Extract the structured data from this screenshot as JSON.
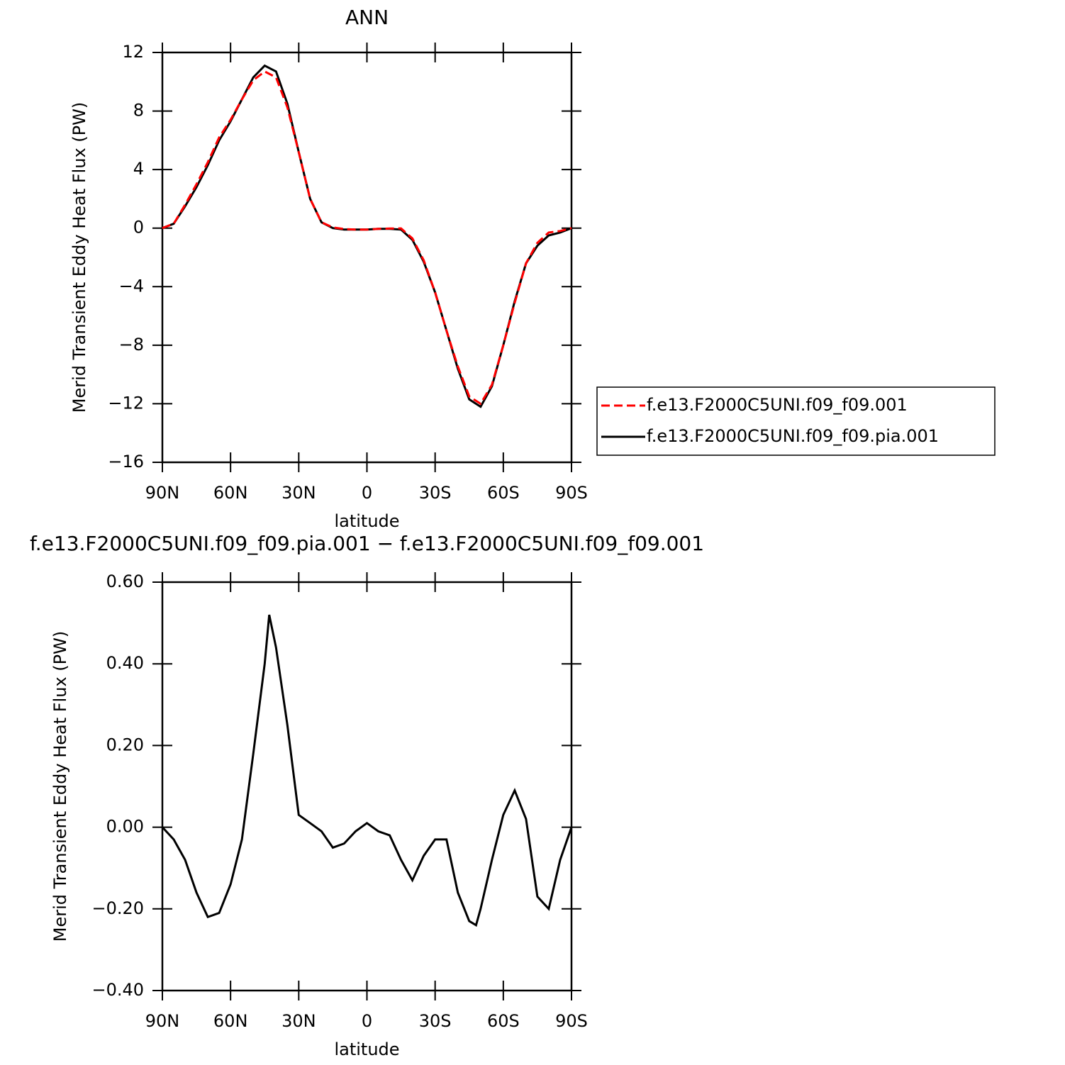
{
  "chart_data": [
    {
      "type": "line",
      "title": "ANN",
      "xlabel": "latitude",
      "ylabel": "Merid Transient Eddy Heat Flux (PW)",
      "xlim": [
        90,
        -90
      ],
      "xticks": [
        {
          "value": 90,
          "label": "90N"
        },
        {
          "value": 60,
          "label": "60N"
        },
        {
          "value": 30,
          "label": "30N"
        },
        0,
        {
          "value": -30,
          "label": "30S"
        },
        {
          "value": -60,
          "label": "60S"
        },
        {
          "value": -90,
          "label": "90S"
        }
      ],
      "ylim": [
        -16,
        12
      ],
      "yticks": [
        {
          "value": -16,
          "label": "−16"
        },
        {
          "value": -12,
          "label": "−12"
        },
        {
          "value": -8,
          "label": "−8"
        },
        {
          "value": -4,
          "label": "−4"
        },
        0,
        4,
        8,
        12
      ],
      "legend": "right",
      "x": [
        90,
        85,
        80,
        75,
        70,
        65,
        60,
        55,
        50,
        45,
        40,
        35,
        30,
        25,
        20,
        15,
        10,
        5,
        0,
        -5,
        -10,
        -15,
        -20,
        -25,
        -30,
        -35,
        -40,
        -45,
        -50,
        -55,
        -60,
        -65,
        -70,
        -75,
        -80,
        -85,
        -90
      ],
      "series": [
        {
          "name": "f.e13.F2000C5UNI.f09_f09.001",
          "color": "#ff0000",
          "dash": "dashed",
          "values": [
            0,
            0.3,
            1.6,
            3.0,
            4.5,
            6.2,
            7.4,
            8.8,
            10.1,
            10.7,
            10.3,
            8.25,
            5.2,
            2.0,
            0.4,
            0.05,
            -0.06,
            -0.1,
            -0.1,
            -0.05,
            -0.03,
            -0.02,
            -0.7,
            -2.2,
            -4.4,
            -7.0,
            -9.45,
            -11.5,
            -12.0,
            -10.7,
            -8.0,
            -5.1,
            -2.4,
            -1.0,
            -0.3,
            -0.2,
            0
          ]
        },
        {
          "name": "f.e13.F2000C5UNI.f09_f09.pia.001",
          "color": "#000000",
          "dash": "solid",
          "values": [
            0,
            0.3,
            1.5,
            2.8,
            4.3,
            6.0,
            7.3,
            8.8,
            10.3,
            11.1,
            10.7,
            8.5,
            5.2,
            2.0,
            0.4,
            0.0,
            -0.1,
            -0.1,
            -0.1,
            -0.05,
            -0.05,
            -0.1,
            -0.8,
            -2.3,
            -4.4,
            -7.0,
            -9.6,
            -11.7,
            -12.2,
            -10.8,
            -8.0,
            -5.0,
            -2.4,
            -1.2,
            -0.5,
            -0.3,
            0
          ]
        }
      ]
    },
    {
      "type": "line",
      "title": "f.e13.F2000C5UNI.f09_f09.pia.001 − f.e13.F2000C5UNI.f09_f09.001",
      "xlabel": "latitude",
      "ylabel": "Merid Transient Eddy Heat Flux (PW)",
      "xlim": [
        90,
        -90
      ],
      "xticks": [
        {
          "value": 90,
          "label": "90N"
        },
        {
          "value": 60,
          "label": "60N"
        },
        {
          "value": 30,
          "label": "30N"
        },
        0,
        {
          "value": -30,
          "label": "30S"
        },
        {
          "value": -60,
          "label": "60S"
        },
        {
          "value": -90,
          "label": "90S"
        }
      ],
      "ylim": [
        -0.4,
        0.6
      ],
      "yticks": [
        {
          "value": -0.4,
          "label": "−0.40"
        },
        {
          "value": -0.2,
          "label": "−0.20"
        },
        {
          "value": 0,
          "label": "0.00"
        },
        {
          "value": 0.2,
          "label": "0.20"
        },
        {
          "value": 0.4,
          "label": "0.40"
        },
        {
          "value": 0.6,
          "label": "0.60"
        }
      ],
      "x": [
        90,
        85,
        80,
        75,
        70,
        65,
        60,
        55,
        50,
        45,
        43,
        40,
        35,
        30,
        25,
        20,
        15,
        10,
        5,
        0,
        -5,
        -10,
        -15,
        -20,
        -25,
        -30,
        -35,
        -40,
        -45,
        -48,
        -50,
        -55,
        -60,
        -65,
        -70,
        -75,
        -80,
        -85,
        -90
      ],
      "series": [
        {
          "color": "#000000",
          "dash": "solid",
          "values": [
            0,
            -0.03,
            -0.08,
            -0.16,
            -0.22,
            -0.21,
            -0.14,
            -0.03,
            0.18,
            0.4,
            0.52,
            0.44,
            0.25,
            0.03,
            0.01,
            -0.01,
            -0.05,
            -0.04,
            -0.01,
            0.01,
            -0.01,
            -0.02,
            -0.08,
            -0.13,
            -0.07,
            -0.03,
            -0.03,
            -0.16,
            -0.23,
            -0.24,
            -0.2,
            -0.08,
            0.03,
            0.09,
            0.02,
            -0.17,
            -0.2,
            -0.08,
            0
          ]
        }
      ]
    }
  ]
}
